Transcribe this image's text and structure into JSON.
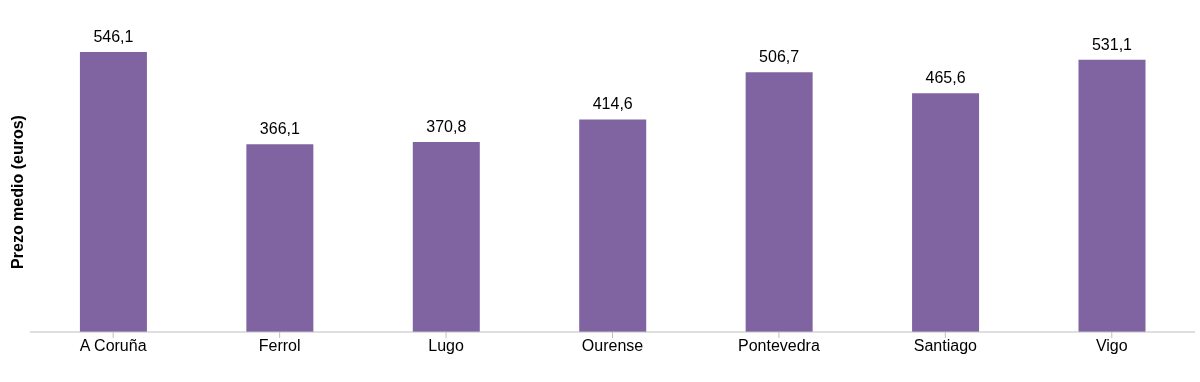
{
  "chart_data": {
    "type": "bar",
    "ylabel": "Prezo medio (euros)",
    "categories": [
      "A Coruña",
      "Ferrol",
      "Lugo",
      "Ourense",
      "Pontevedra",
      "Santiago",
      "Vigo"
    ],
    "values": [
      546.1,
      366.1,
      370.8,
      414.6,
      506.7,
      465.6,
      531.1
    ],
    "value_labels": [
      "546,1",
      "366,1",
      "370,8",
      "414,6",
      "506,7",
      "465,6",
      "531,1"
    ],
    "color": "#8064a2",
    "tick_labels": "x"
  }
}
